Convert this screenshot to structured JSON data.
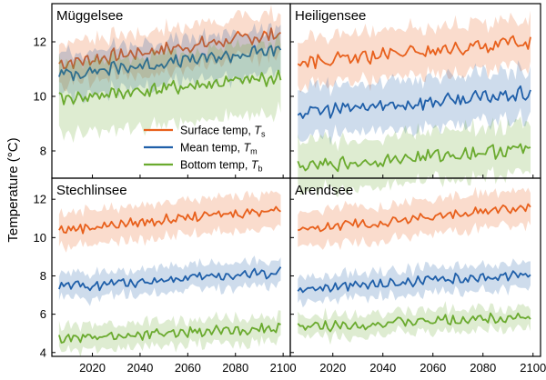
{
  "figure": {
    "ylabel": "Temperature (°C)",
    "colors": {
      "surface": "#e8601c",
      "mean": "#1f5fa9",
      "bottom": "#6aaa2e"
    }
  },
  "legend": [
    {
      "key": "surface",
      "label": "Surface temp, ",
      "symbol": "T",
      "sub": "s"
    },
    {
      "key": "mean",
      "label": "Mean temp, ",
      "symbol": "T",
      "sub": "m"
    },
    {
      "key": "bottom",
      "label": "Bottom temp, ",
      "symbol": "T",
      "sub": "b"
    }
  ],
  "chart_data": [
    {
      "type": "line",
      "title": "Müggelsee",
      "x": [
        2006,
        2099
      ],
      "xticks": [
        2020,
        2040,
        2060,
        2080,
        2100
      ],
      "ylim": [
        7,
        13.4
      ],
      "yticks": [
        8,
        10,
        12
      ],
      "series": [
        {
          "name": "Surface temp, Ts",
          "key": "surface",
          "start": 11.2,
          "end": 12.3,
          "band": 0.75
        },
        {
          "name": "Mean temp, Tm",
          "key": "mean",
          "start": 10.8,
          "end": 11.7,
          "band": 0.8
        },
        {
          "name": "Bottom temp, Tb",
          "key": "bottom",
          "start": 9.9,
          "end": 10.7,
          "band": 1.3
        }
      ]
    },
    {
      "type": "line",
      "title": "Heiligensee",
      "x": [
        2006,
        2099
      ],
      "xticks": [
        2020,
        2040,
        2060,
        2080,
        2100
      ],
      "ylim": [
        7,
        13.4
      ],
      "yticks": [
        8,
        10,
        12
      ],
      "series": [
        {
          "name": "Surface temp, Ts",
          "key": "surface",
          "start": 11.2,
          "end": 12.0,
          "band": 0.85
        },
        {
          "name": "Mean temp, Tm",
          "key": "mean",
          "start": 9.4,
          "end": 10.1,
          "band": 0.9
        },
        {
          "name": "Bottom temp, Tb",
          "key": "bottom",
          "start": 7.4,
          "end": 8.1,
          "band": 0.9
        }
      ]
    },
    {
      "type": "line",
      "title": "Stechlinsee",
      "x": [
        2006,
        2099
      ],
      "xticks": [
        2020,
        2040,
        2060,
        2080,
        2100
      ],
      "ylim": [
        3.8,
        13.1
      ],
      "yticks": [
        4,
        6,
        8,
        10,
        12
      ],
      "series": [
        {
          "name": "Surface temp, Ts",
          "key": "surface",
          "start": 10.4,
          "end": 11.5,
          "band": 0.9
        },
        {
          "name": "Mean temp, Tm",
          "key": "mean",
          "start": 7.4,
          "end": 8.2,
          "band": 0.65
        },
        {
          "name": "Bottom temp, Tb",
          "key": "bottom",
          "start": 4.7,
          "end": 5.3,
          "band": 0.65
        }
      ]
    },
    {
      "type": "line",
      "title": "Arendsee",
      "x": [
        2006,
        2099
      ],
      "xticks": [
        2020,
        2040,
        2060,
        2080,
        2100
      ],
      "ylim": [
        3.8,
        13.1
      ],
      "yticks": [
        4,
        6,
        8,
        10,
        12
      ],
      "series": [
        {
          "name": "Surface temp, Ts",
          "key": "surface",
          "start": 10.4,
          "end": 11.6,
          "band": 0.9
        },
        {
          "name": "Mean temp, Tm",
          "key": "mean",
          "start": 7.3,
          "end": 8.1,
          "band": 0.65
        },
        {
          "name": "Bottom temp, Tb",
          "key": "bottom",
          "start": 5.3,
          "end": 5.9,
          "band": 0.55
        }
      ]
    }
  ]
}
